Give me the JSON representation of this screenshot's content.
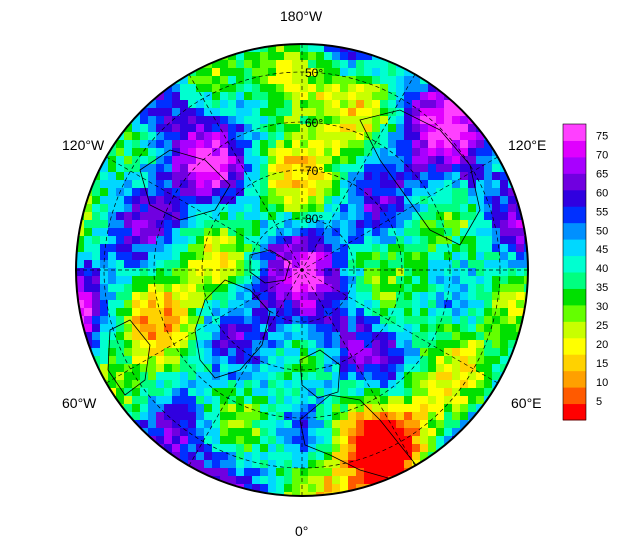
{
  "map": {
    "longitude_labels": {
      "top": "180°W",
      "upper_left": "120°W",
      "upper_right": "120°E",
      "lower_left": "60°W",
      "lower_right": "60°E",
      "bottom": "0°"
    },
    "latitude_labels": [
      "50°",
      "60°",
      "70°",
      "80°"
    ],
    "colorbar": {
      "ticks": [
        75,
        70,
        65,
        60,
        55,
        50,
        45,
        40,
        35,
        30,
        25,
        20,
        15,
        10,
        5
      ],
      "min": 0,
      "max": 78,
      "colors_low_to_high": [
        "#ff0000",
        "#ff5a00",
        "#ffa000",
        "#ffd200",
        "#ffff00",
        "#c8ff00",
        "#64ff00",
        "#00e000",
        "#00ff80",
        "#00ffd0",
        "#00d8ff",
        "#0090ff",
        "#0030ff",
        "#3000e0",
        "#7000e0",
        "#a800ff",
        "#e000ff",
        "#ff40ff"
      ]
    }
  }
}
